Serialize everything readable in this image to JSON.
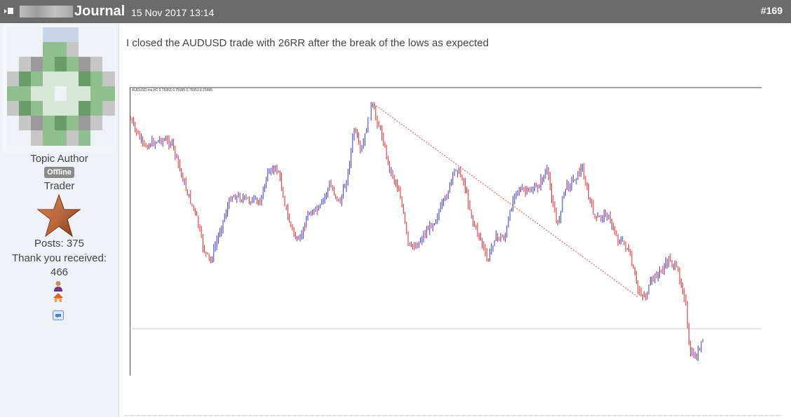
{
  "header": {
    "title": "Journal",
    "date": "15 Nov 2017 13:14",
    "post_number": "#169"
  },
  "author": {
    "role": "Topic Author",
    "status": "Offline",
    "rank": "Trader",
    "posts": "Posts: 375",
    "thanks_label": "Thank you received:",
    "thanks_count": "466"
  },
  "post": {
    "text": "I closed the AUDUSD trade with 26RR after the break of the lows as expected"
  },
  "chart_image": {
    "header_text": "AUDUSD.mu,H1  0.75953 0.75995 0.75953 0.75995",
    "bull_color": "#3333dd",
    "bear_color": "#ee2222",
    "trendline_color": "#ee4444"
  },
  "colors": {
    "header_bg": "#6b6b6b",
    "sidebar_bg": "#eef1f6",
    "status_badge": "#8a8a8a"
  }
}
